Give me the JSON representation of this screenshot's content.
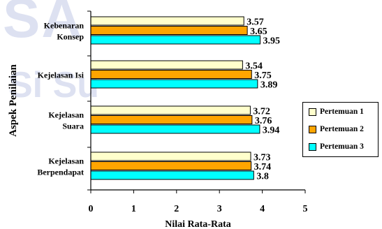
{
  "chart_data": {
    "type": "bar",
    "orientation": "horizontal",
    "categories": [
      [
        "Kebenaran",
        "Konsep"
      ],
      [
        "Kejelasan Isi"
      ],
      [
        "Kejelasan",
        "Suara"
      ],
      [
        "Kejelasan",
        "Berpendapat"
      ]
    ],
    "series": [
      {
        "name": "Pertemuan 1",
        "color": "#ffffcc",
        "values": [
          3.57,
          3.54,
          3.72,
          3.73
        ]
      },
      {
        "name": "Pertemuan 2",
        "color": "#ffa500",
        "values": [
          3.65,
          3.75,
          3.76,
          3.74
        ]
      },
      {
        "name": "Pertemuan 3",
        "color": "#00ffff",
        "values": [
          3.95,
          3.89,
          3.94,
          3.8
        ]
      }
    ],
    "value_labels": [
      [
        "3.57",
        "3.54",
        "3.72",
        "3.73"
      ],
      [
        "3.65",
        "3.75",
        "3.76",
        "3.74"
      ],
      [
        "3.95",
        "3.89",
        "3.94",
        "3.8"
      ]
    ],
    "xlabel": "Nilai Rata-Rata",
    "ylabel": "Aspek Penilaian",
    "xlim": [
      0,
      5
    ],
    "xticks": [
      "0",
      "1",
      "2",
      "3",
      "4",
      "5"
    ],
    "grid": false,
    "legend": "right"
  },
  "watermark": {
    "line1": "SA",
    "line2": "Si Su"
  }
}
